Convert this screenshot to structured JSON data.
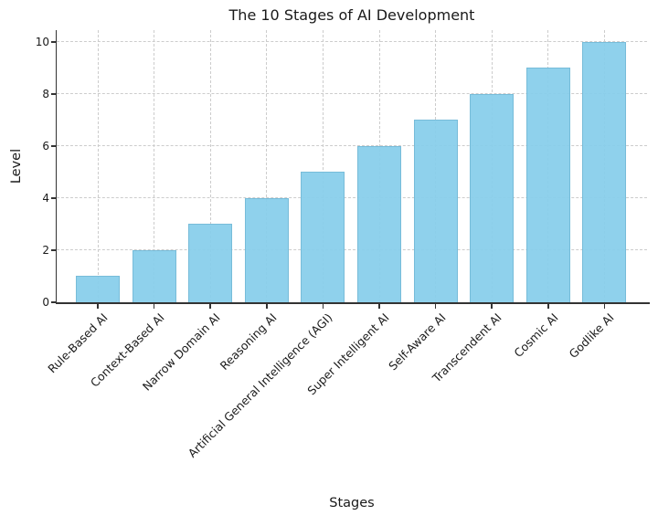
{
  "chart_data": {
    "type": "bar",
    "title": "The 10 Stages of AI Development",
    "xlabel": "Stages",
    "ylabel": "Level",
    "categories": [
      "Rule-Based AI",
      "Context-Based AI",
      "Narrow Domain AI",
      "Reasoning AI",
      "Artificial General Intelligence (AGI)",
      "Super Intelligent AI",
      "Self-Aware AI",
      "Transcendent AI",
      "Cosmic AI",
      "Godlike AI"
    ],
    "values": [
      1,
      2,
      3,
      4,
      5,
      6,
      7,
      8,
      9,
      10
    ],
    "yticks": [
      0,
      2,
      4,
      6,
      8,
      10
    ],
    "ylim": [
      0,
      10.45
    ],
    "grid": true,
    "grid_style": "dashed",
    "legend_position": "none",
    "colors": {
      "bar_fill": "#87CEEB",
      "bar_edge": "#67AECD",
      "grid": "#cccccc",
      "axis": "#333333",
      "text": "#1a1a1a",
      "background": "#ffffff"
    }
  }
}
